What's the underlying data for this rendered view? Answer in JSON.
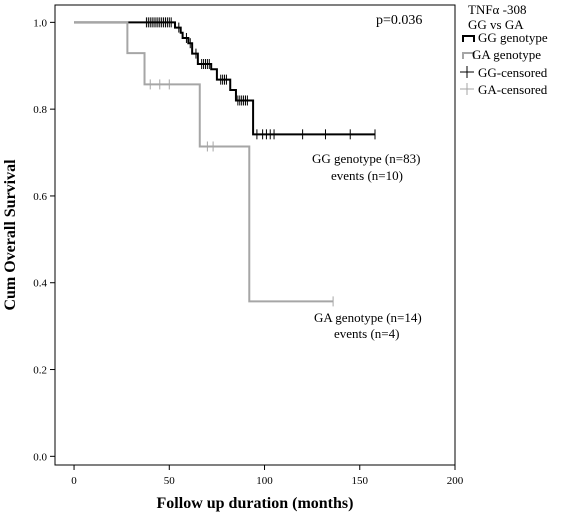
{
  "chart_data": {
    "type": "line",
    "subtype": "kaplan-meier",
    "xlabel": "Follow up duration (months)",
    "ylabel": "Cum Overall Survival",
    "xlim": [
      -10,
      200
    ],
    "ylim": [
      -0.02,
      1.04
    ],
    "xticks": [
      "0",
      "50",
      "100",
      "150",
      "200"
    ],
    "yticks": [
      "0.0",
      "0.2",
      "0.4",
      "0.6",
      "0.8",
      "1.0"
    ],
    "grid": false,
    "legend_position": "outside-top-right",
    "legend_title": [
      "TNFα -308",
      "GG vs GA"
    ],
    "p_value_text": "p=0.036",
    "series": [
      {
        "name": "GG genotype",
        "color": "#000000",
        "steps": [
          [
            0,
            1.0
          ],
          [
            53,
            0.988
          ],
          [
            56,
            0.976
          ],
          [
            57,
            0.964
          ],
          [
            60,
            0.952
          ],
          [
            62,
            0.928
          ],
          [
            65,
            0.904
          ],
          [
            72,
            0.892
          ],
          [
            75,
            0.868
          ],
          [
            82,
            0.844
          ],
          [
            85,
            0.82
          ],
          [
            94,
            0.742
          ],
          [
            158,
            0.742
          ]
        ],
        "censored_name": "GG-censored",
        "censored": [
          [
            38,
            1.0
          ],
          [
            39,
            1.0
          ],
          [
            40,
            1.0
          ],
          [
            41,
            1.0
          ],
          [
            42,
            1.0
          ],
          [
            43,
            1.0
          ],
          [
            44,
            1.0
          ],
          [
            45,
            1.0
          ],
          [
            46,
            1.0
          ],
          [
            47,
            1.0
          ],
          [
            48,
            1.0
          ],
          [
            49,
            1.0
          ],
          [
            50,
            1.0
          ],
          [
            51,
            1.0
          ],
          [
            55,
            0.988
          ],
          [
            59,
            0.964
          ],
          [
            61,
            0.952
          ],
          [
            64,
            0.928
          ],
          [
            67,
            0.904
          ],
          [
            68,
            0.904
          ],
          [
            69,
            0.904
          ],
          [
            70,
            0.904
          ],
          [
            71,
            0.904
          ],
          [
            77,
            0.868
          ],
          [
            78,
            0.868
          ],
          [
            79,
            0.868
          ],
          [
            80,
            0.868
          ],
          [
            86,
            0.82
          ],
          [
            87,
            0.82
          ],
          [
            88,
            0.82
          ],
          [
            89,
            0.82
          ],
          [
            90,
            0.82
          ],
          [
            91,
            0.82
          ],
          [
            96,
            0.742
          ],
          [
            99,
            0.742
          ],
          [
            101,
            0.742
          ],
          [
            103,
            0.742
          ],
          [
            105,
            0.742
          ],
          [
            120,
            0.742
          ],
          [
            132,
            0.742
          ],
          [
            145,
            0.742
          ],
          [
            158,
            0.742
          ]
        ],
        "annotation": [
          "GG genotype (n=83)",
          "events (n=10)"
        ]
      },
      {
        "name": "GA genotype",
        "color": "#a6a6a6",
        "steps": [
          [
            0,
            1.0
          ],
          [
            28,
            0.929
          ],
          [
            37,
            0.857
          ],
          [
            66,
            0.714
          ],
          [
            92,
            0.357
          ],
          [
            136,
            0.357
          ]
        ],
        "censored_name": "GA-censored",
        "censored": [
          [
            40,
            0.857
          ],
          [
            45,
            0.857
          ],
          [
            50,
            0.857
          ],
          [
            70,
            0.714
          ],
          [
            73,
            0.714
          ],
          [
            136,
            0.357
          ]
        ],
        "annotation": [
          "GA genotype (n=14)",
          "events (n=4)"
        ]
      }
    ]
  }
}
